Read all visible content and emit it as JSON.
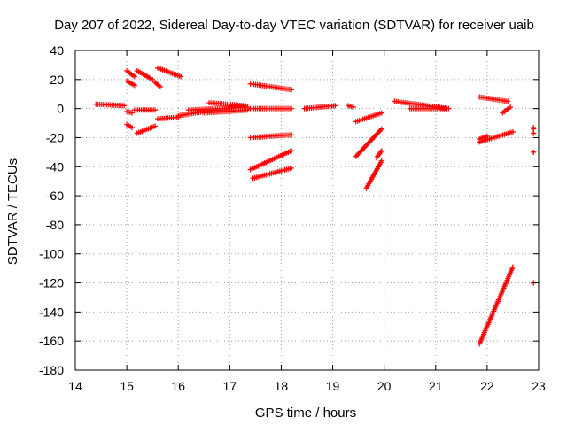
{
  "chart_data": {
    "type": "scatter",
    "title": "Day 207 of 2022, Sidereal Day-to-day VTEC variation (SDTVAR) for receiver uaib",
    "xlabel": "GPS time / hours",
    "ylabel": "SDTVAR / TECUs",
    "xlim": [
      14,
      23
    ],
    "ylim": [
      -180,
      40
    ],
    "xticks": [
      "14",
      "15",
      "16",
      "17",
      "18",
      "19",
      "20",
      "21",
      "22",
      "23"
    ],
    "yticks": [
      "40",
      "20",
      "0",
      "-20",
      "-40",
      "-60",
      "-80",
      "-100",
      "-120",
      "-140",
      "-160",
      "-180"
    ],
    "grid": true,
    "marker": "+",
    "color": "#ff0000",
    "segments": [
      {
        "x0": 14.4,
        "y0": 3,
        "x1": 14.95,
        "y1": 2
      },
      {
        "x0": 15.0,
        "y0": 26,
        "x1": 15.15,
        "y1": 22
      },
      {
        "x0": 15.0,
        "y0": 19,
        "x1": 15.15,
        "y1": 16
      },
      {
        "x0": 15.0,
        "y0": -2,
        "x1": 15.1,
        "y1": -3
      },
      {
        "x0": 15.0,
        "y0": -11,
        "x1": 15.1,
        "y1": -13
      },
      {
        "x0": 15.2,
        "y0": 26,
        "x1": 15.5,
        "y1": 20
      },
      {
        "x0": 15.55,
        "y0": 18,
        "x1": 15.65,
        "y1": 15
      },
      {
        "x0": 15.6,
        "y0": 28,
        "x1": 16.05,
        "y1": 22
      },
      {
        "x0": 15.15,
        "y0": -1,
        "x1": 15.55,
        "y1": -1
      },
      {
        "x0": 15.2,
        "y0": -17,
        "x1": 15.55,
        "y1": -12
      },
      {
        "x0": 15.6,
        "y0": -7,
        "x1": 16.0,
        "y1": -6
      },
      {
        "x0": 16.0,
        "y0": -5,
        "x1": 16.5,
        "y1": -2
      },
      {
        "x0": 16.2,
        "y0": -1,
        "x1": 17.35,
        "y1": 1
      },
      {
        "x0": 16.6,
        "y0": 4,
        "x1": 17.3,
        "y1": 2
      },
      {
        "x0": 16.5,
        "y0": -3,
        "x1": 17.35,
        "y1": -1
      },
      {
        "x0": 17.4,
        "y0": 17,
        "x1": 18.2,
        "y1": 13
      },
      {
        "x0": 17.4,
        "y0": 0,
        "x1": 18.2,
        "y1": 0
      },
      {
        "x0": 17.4,
        "y0": -20,
        "x1": 18.2,
        "y1": -18
      },
      {
        "x0": 17.4,
        "y0": -42,
        "x1": 18.2,
        "y1": -29
      },
      {
        "x0": 17.45,
        "y0": -48,
        "x1": 18.2,
        "y1": -41
      },
      {
        "x0": 18.45,
        "y0": 0,
        "x1": 19.05,
        "y1": 2
      },
      {
        "x0": 19.3,
        "y0": 2,
        "x1": 19.4,
        "y1": 1
      },
      {
        "x0": 19.45,
        "y0": -9,
        "x1": 19.95,
        "y1": -3
      },
      {
        "x0": 19.45,
        "y0": -33,
        "x1": 19.95,
        "y1": -14
      },
      {
        "x0": 19.65,
        "y0": -55,
        "x1": 19.95,
        "y1": -36
      },
      {
        "x0": 19.85,
        "y0": -34,
        "x1": 19.95,
        "y1": -29
      },
      {
        "x0": 20.2,
        "y0": 5,
        "x1": 21.25,
        "y1": 0
      },
      {
        "x0": 20.5,
        "y0": 0,
        "x1": 21.2,
        "y1": 0
      },
      {
        "x0": 21.85,
        "y0": 8,
        "x1": 22.4,
        "y1": 5
      },
      {
        "x0": 22.3,
        "y0": -3,
        "x1": 22.45,
        "y1": 1
      },
      {
        "x0": 21.85,
        "y0": -23,
        "x1": 22.5,
        "y1": -16
      },
      {
        "x0": 21.85,
        "y0": -21,
        "x1": 22.0,
        "y1": -19
      },
      {
        "x0": 21.85,
        "y0": -162,
        "x1": 22.5,
        "y1": -109
      },
      {
        "x0": 22.9,
        "y0": -13,
        "x1": 22.9,
        "y1": -14
      },
      {
        "x0": 22.9,
        "y0": -17,
        "x1": 22.9,
        "y1": -17
      },
      {
        "x0": 22.9,
        "y0": -30,
        "x1": 22.9,
        "y1": -30
      },
      {
        "x0": 22.9,
        "y0": -120,
        "x1": 22.9,
        "y1": -120
      }
    ]
  }
}
